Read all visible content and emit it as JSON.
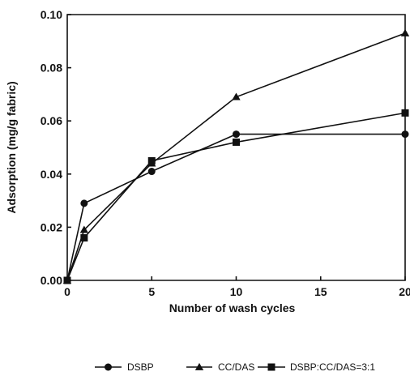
{
  "chart_data": {
    "type": "line",
    "xlabel": "Number of wash cycles",
    "ylabel": "Adsorption (mg/g fabric)",
    "xlim": [
      0,
      20
    ],
    "ylim": [
      0.0,
      0.1
    ],
    "xticks": [
      0,
      5,
      10,
      15,
      20
    ],
    "xtick_labels": [
      "0",
      "5",
      "10",
      "15",
      "20"
    ],
    "yticks": [
      0.0,
      0.02,
      0.04,
      0.06,
      0.08,
      0.1
    ],
    "ytick_labels": [
      "0.00",
      "0.02",
      "0.04",
      "0.06",
      "0.08",
      "0.10"
    ],
    "grid": false,
    "legend_position": "bottom",
    "series": [
      {
        "name": "DSBP",
        "marker": "circle",
        "color": "#111111",
        "x": [
          0,
          1,
          5,
          10,
          20
        ],
        "y": [
          0.0,
          0.029,
          0.041,
          0.055,
          0.055
        ]
      },
      {
        "name": "CC/DAS",
        "marker": "triangle",
        "color": "#111111",
        "x": [
          0,
          1,
          5,
          10,
          20
        ],
        "y": [
          0.0,
          0.019,
          0.044,
          0.069,
          0.093
        ]
      },
      {
        "name": "DSBP:CC/DAS=3:1",
        "marker": "square",
        "color": "#111111",
        "x": [
          0,
          1,
          5,
          10,
          20
        ],
        "y": [
          0.0,
          0.016,
          0.045,
          0.052,
          0.063
        ]
      }
    ]
  }
}
